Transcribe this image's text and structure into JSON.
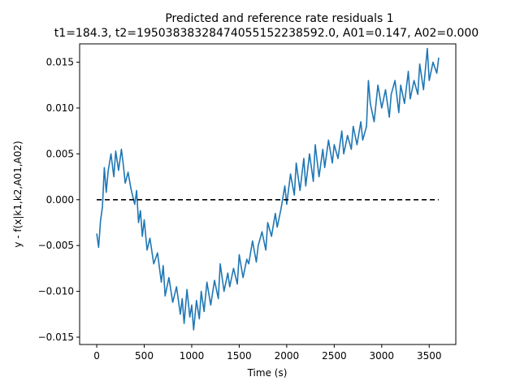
{
  "chart_data": {
    "type": "line",
    "title": "Predicted and reference rate residuals 1",
    "subtitle": "t1=184.3, t2=19503838328474055152238592.0, A01=0.147, A02=0.000",
    "xlabel": "Time (s)",
    "ylabel": "y - f(x|k1,k2,A01,A02)",
    "xlim": [
      -180,
      3780
    ],
    "ylim": [
      -0.0158,
      0.017
    ],
    "xticks": [
      0,
      500,
      1000,
      1500,
      2000,
      2500,
      3000,
      3500
    ],
    "xtick_labels": [
      "0",
      "500",
      "1000",
      "1500",
      "2000",
      "2500",
      "3000",
      "3500"
    ],
    "yticks": [
      -0.015,
      -0.01,
      -0.005,
      0.0,
      0.005,
      0.01,
      0.015
    ],
    "ytick_labels": [
      "−0.015",
      "−0.010",
      "−0.005",
      "0.000",
      "0.005",
      "0.010",
      "0.015"
    ],
    "grid": false,
    "series": [
      {
        "style": "solid",
        "color": "#1f77b4",
        "x": [
          0,
          20,
          40,
          60,
          80,
          100,
          120,
          150,
          180,
          200,
          230,
          260,
          280,
          300,
          330,
          360,
          400,
          420,
          440,
          460,
          480,
          500,
          530,
          560,
          600,
          640,
          680,
          700,
          720,
          760,
          800,
          840,
          880,
          900,
          920,
          950,
          980,
          1000,
          1020,
          1050,
          1080,
          1100,
          1130,
          1160,
          1200,
          1240,
          1280,
          1300,
          1340,
          1380,
          1400,
          1440,
          1480,
          1500,
          1540,
          1580,
          1600,
          1640,
          1680,
          1700,
          1740,
          1780,
          1800,
          1840,
          1880,
          1900,
          1940,
          1980,
          2000,
          2040,
          2080,
          2100,
          2140,
          2180,
          2200,
          2240,
          2280,
          2300,
          2340,
          2380,
          2400,
          2440,
          2480,
          2500,
          2540,
          2580,
          2600,
          2640,
          2680,
          2700,
          2740,
          2780,
          2800,
          2840,
          2860,
          2880,
          2920,
          2960,
          3000,
          3040,
          3080,
          3100,
          3140,
          3180,
          3200,
          3240,
          3280,
          3300,
          3340,
          3380,
          3400,
          3440,
          3480,
          3500,
          3540,
          3580,
          3600
        ],
        "values": [
          -0.0037,
          -0.0052,
          -0.0023,
          -0.0008,
          0.0035,
          0.0008,
          0.0031,
          0.005,
          0.0025,
          0.0053,
          0.0032,
          0.0055,
          0.0038,
          0.0018,
          0.003,
          0.0012,
          -0.0005,
          0.001,
          -0.0025,
          -0.0012,
          -0.004,
          -0.0022,
          -0.0055,
          -0.0042,
          -0.007,
          -0.0058,
          -0.009,
          -0.0072,
          -0.0105,
          -0.0085,
          -0.0112,
          -0.0095,
          -0.0125,
          -0.0108,
          -0.0135,
          -0.0098,
          -0.0128,
          -0.0115,
          -0.0142,
          -0.011,
          -0.013,
          -0.01,
          -0.0122,
          -0.009,
          -0.0115,
          -0.0088,
          -0.0108,
          -0.007,
          -0.01,
          -0.008,
          -0.0095,
          -0.0075,
          -0.0092,
          -0.006,
          -0.0085,
          -0.0065,
          -0.007,
          -0.0045,
          -0.0068,
          -0.005,
          -0.0035,
          -0.0055,
          -0.0025,
          -0.004,
          -0.0015,
          -0.003,
          -0.001,
          0.0015,
          -0.0005,
          0.0028,
          0.0005,
          0.004,
          0.001,
          0.0045,
          0.0015,
          0.005,
          0.002,
          0.006,
          0.0025,
          0.0055,
          0.0035,
          0.0065,
          0.004,
          0.006,
          0.0045,
          0.0075,
          0.005,
          0.007,
          0.0055,
          0.008,
          0.006,
          0.0085,
          0.0065,
          0.008,
          0.013,
          0.0105,
          0.0085,
          0.0125,
          0.01,
          0.012,
          0.009,
          0.0115,
          0.013,
          0.0095,
          0.0125,
          0.0105,
          0.014,
          0.011,
          0.013,
          0.0115,
          0.0148,
          0.012,
          0.0165,
          0.013,
          0.015,
          0.0138,
          0.0155
        ]
      },
      {
        "style": "dashed",
        "color": "#000000",
        "x": [
          0,
          3600
        ],
        "values": [
          0.0,
          0.0
        ]
      }
    ]
  }
}
